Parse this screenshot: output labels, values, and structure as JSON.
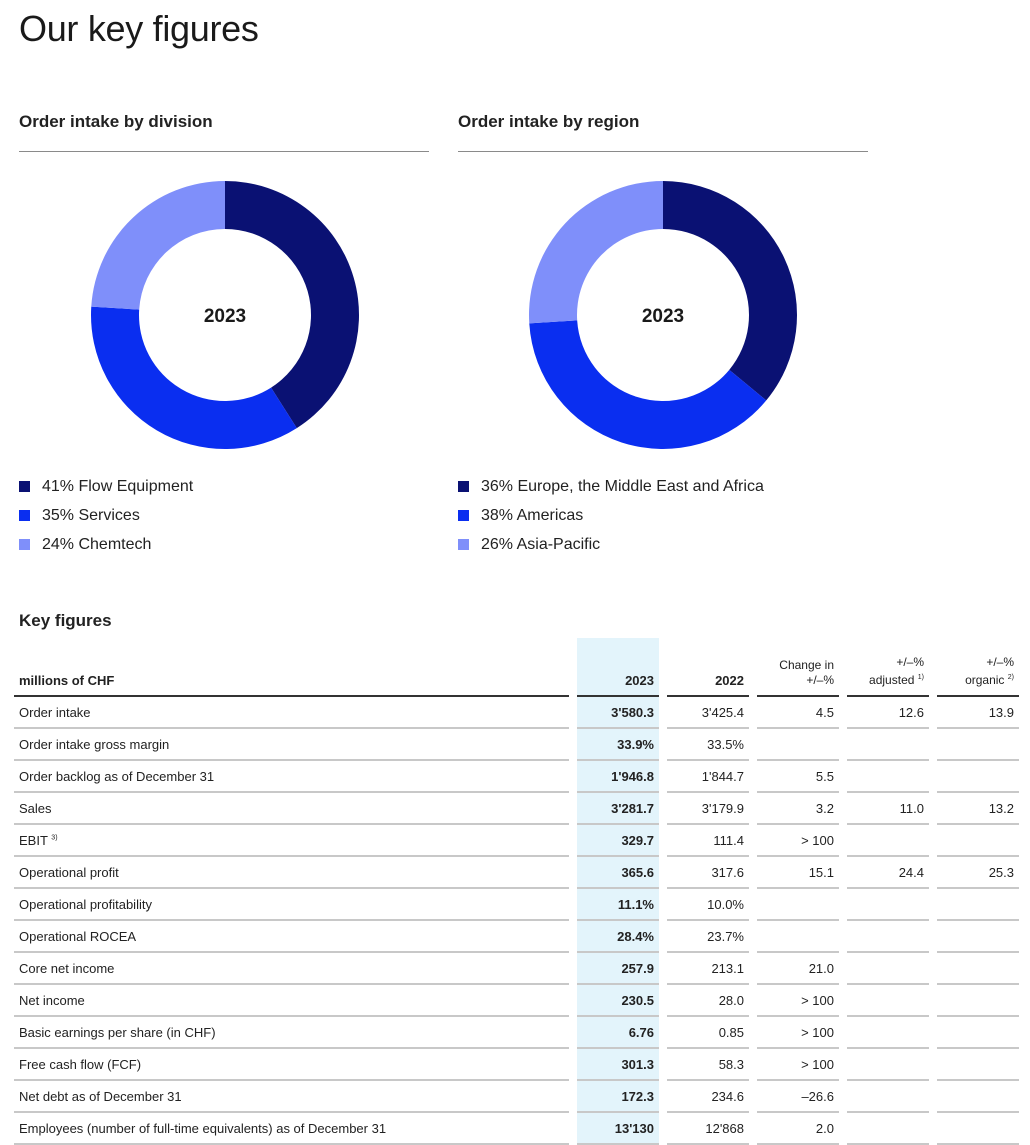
{
  "page": {
    "title": "Our key figures"
  },
  "chart_data": [
    {
      "type": "pie",
      "style": "donut",
      "title": "Order intake by division",
      "center_label": "2023",
      "categories": [
        "Flow Equipment",
        "Services",
        "Chemtech"
      ],
      "values": [
        41,
        35,
        24
      ],
      "colors": [
        "#0a1173",
        "#0a2ef0",
        "#7f8ffa"
      ],
      "legend": [
        "41% Flow Equipment",
        "35% Services",
        "24% Chemtech"
      ]
    },
    {
      "type": "pie",
      "style": "donut",
      "title": "Order intake by region",
      "center_label": "2023",
      "categories": [
        "Europe, the Middle East and Africa",
        "Americas",
        "Asia-Pacific"
      ],
      "values": [
        36,
        38,
        26
      ],
      "colors": [
        "#0a1173",
        "#0a2ef0",
        "#7f8ffa"
      ],
      "legend": [
        "36% Europe, the Middle East and Africa",
        "38% Americas",
        "26% Asia-Pacific"
      ]
    }
  ],
  "table": {
    "title": "Key figures",
    "headers": {
      "label": "millions of CHF",
      "y2023": "2023",
      "y2022": "2022",
      "change_l1": "Change in",
      "change_l2": "+/–%",
      "adj_l1": "+/–%",
      "adj_l2": "adjusted",
      "adj_note": "1)",
      "org_l1": "+/–%",
      "org_l2": "organic",
      "org_note": "2)"
    },
    "rows": [
      {
        "label": "Order intake",
        "note": "",
        "y2023": "3'580.3",
        "y2022": "3'425.4",
        "change": "4.5",
        "adjusted": "12.6",
        "organic": "13.9"
      },
      {
        "label": "Order intake gross margin",
        "note": "",
        "y2023": "33.9%",
        "y2022": "33.5%",
        "change": "",
        "adjusted": "",
        "organic": ""
      },
      {
        "label": "Order backlog as of December 31",
        "note": "",
        "y2023": "1'946.8",
        "y2022": "1'844.7",
        "change": "5.5",
        "adjusted": "",
        "organic": ""
      },
      {
        "label": "Sales",
        "note": "",
        "y2023": "3'281.7",
        "y2022": "3'179.9",
        "change": "3.2",
        "adjusted": "11.0",
        "organic": "13.2"
      },
      {
        "label": "EBIT",
        "note": "3)",
        "y2023": "329.7",
        "y2022": "111.4",
        "change": "> 100",
        "adjusted": "",
        "organic": ""
      },
      {
        "label": "Operational profit",
        "note": "",
        "y2023": "365.6",
        "y2022": "317.6",
        "change": "15.1",
        "adjusted": "24.4",
        "organic": "25.3"
      },
      {
        "label": "Operational profitability",
        "note": "",
        "y2023": "11.1%",
        "y2022": "10.0%",
        "change": "",
        "adjusted": "",
        "organic": ""
      },
      {
        "label": "Operational ROCEA",
        "note": "",
        "y2023": "28.4%",
        "y2022": "23.7%",
        "change": "",
        "adjusted": "",
        "organic": ""
      },
      {
        "label": "Core net income",
        "note": "",
        "y2023": "257.9",
        "y2022": "213.1",
        "change": "21.0",
        "adjusted": "",
        "organic": ""
      },
      {
        "label": "Net income",
        "note": "",
        "y2023": "230.5",
        "y2022": "28.0",
        "change": "> 100",
        "adjusted": "",
        "organic": ""
      },
      {
        "label": "Basic earnings per share (in CHF)",
        "note": "",
        "y2023": "6.76",
        "y2022": "0.85",
        "change": "> 100",
        "adjusted": "",
        "organic": ""
      },
      {
        "label": "Free cash flow (FCF)",
        "note": "",
        "y2023": "301.3",
        "y2022": "58.3",
        "change": "> 100",
        "adjusted": "",
        "organic": ""
      },
      {
        "label": "Net debt as of December 31",
        "note": "",
        "y2023": "172.3",
        "y2022": "234.6",
        "change": "–26.6",
        "adjusted": "",
        "organic": ""
      },
      {
        "label": "Employees (number of full-time equivalents) as of December 31",
        "note": "",
        "y2023": "13'130",
        "y2022": "12'868",
        "change": "2.0",
        "adjusted": "",
        "organic": ""
      }
    ]
  }
}
